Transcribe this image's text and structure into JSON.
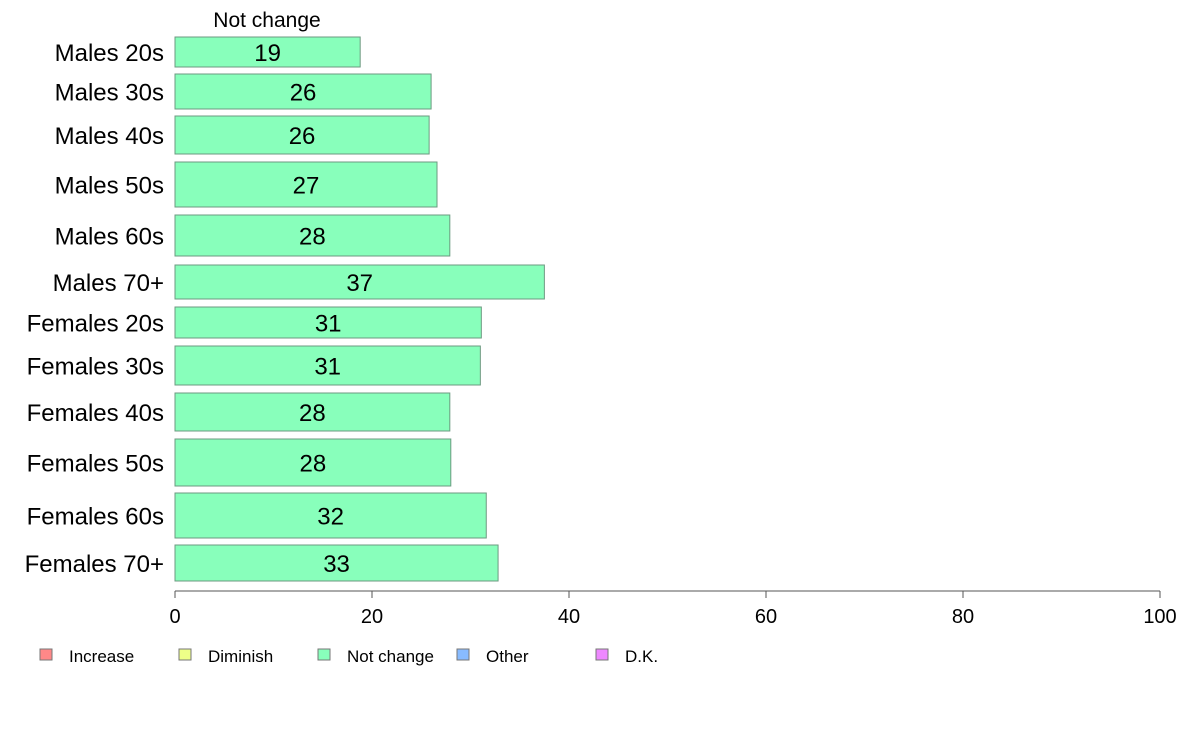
{
  "chart_data": {
    "type": "bar",
    "orientation": "horizontal",
    "series_title": "Not change",
    "categories": [
      "Males 20s",
      "Males 30s",
      "Males 40s",
      "Males 50s",
      "Males 60s",
      "Males 70+",
      "Females 20s",
      "Females 30s",
      "Females 40s",
      "Females 50s",
      "Females 60s",
      "Females 70+"
    ],
    "values": [
      19,
      26,
      26,
      27,
      28,
      37,
      31,
      31,
      28,
      28,
      32,
      33
    ],
    "bar_extents": [
      18.8,
      26.0,
      25.8,
      26.6,
      27.9,
      37.5,
      31.1,
      31.0,
      27.9,
      28.0,
      31.6,
      32.8
    ],
    "xlim": [
      0,
      100
    ],
    "xticks": [
      0,
      20,
      40,
      60,
      80,
      100
    ],
    "bar_color": "#88ffbb",
    "grid": false,
    "legend": {
      "placement": "bottom",
      "entries": [
        {
          "label": "Increase",
          "color": "#ff8888"
        },
        {
          "label": "Diminish",
          "color": "#eeff88"
        },
        {
          "label": "Not change",
          "color": "#88ffbb"
        },
        {
          "label": "Other",
          "color": "#88bbff"
        },
        {
          "label": "D.K.",
          "color": "#ee88ff"
        }
      ]
    }
  }
}
